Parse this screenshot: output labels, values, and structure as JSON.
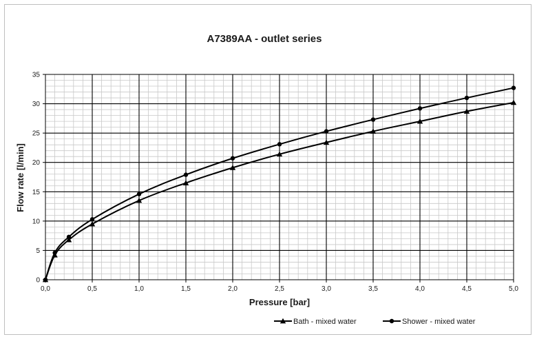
{
  "chart_data": {
    "type": "line",
    "title": "A7389AA - outlet series",
    "xlabel": "Pressure [bar]",
    "ylabel": "Flow rate [l/min]",
    "xlim": [
      0,
      5
    ],
    "ylim": [
      0,
      35
    ],
    "x_major_step": 0.5,
    "y_major_step": 5,
    "x_minor_step": 0.1,
    "y_minor_step": 1,
    "x_ticks": [
      "0,0",
      "0,5",
      "1,0",
      "1,5",
      "2,0",
      "2,5",
      "3,0",
      "3,5",
      "4,0",
      "4,5",
      "5,0"
    ],
    "y_ticks": [
      "0",
      "5",
      "10",
      "15",
      "20",
      "25",
      "30",
      "35"
    ],
    "grid": true,
    "legend_position": "bottom-right",
    "series": [
      {
        "name": "Bath - mixed water",
        "marker": "triangle",
        "x": [
          0,
          0.1,
          0.25,
          0.5,
          1.0,
          1.5,
          2.0,
          2.5,
          3.0,
          3.5,
          4.0,
          4.5,
          5.0
        ],
        "y": [
          0,
          4.2,
          6.8,
          9.5,
          13.5,
          16.5,
          19.1,
          21.4,
          23.4,
          25.3,
          27.0,
          28.7,
          30.2
        ]
      },
      {
        "name": "Shower - mixed water",
        "marker": "circle",
        "x": [
          0,
          0.1,
          0.25,
          0.5,
          1.0,
          1.5,
          2.0,
          2.5,
          3.0,
          3.5,
          4.0,
          4.5,
          5.0
        ],
        "y": [
          0,
          4.6,
          7.3,
          10.3,
          14.6,
          17.9,
          20.7,
          23.1,
          25.3,
          27.3,
          29.2,
          31.0,
          32.7
        ]
      }
    ]
  }
}
